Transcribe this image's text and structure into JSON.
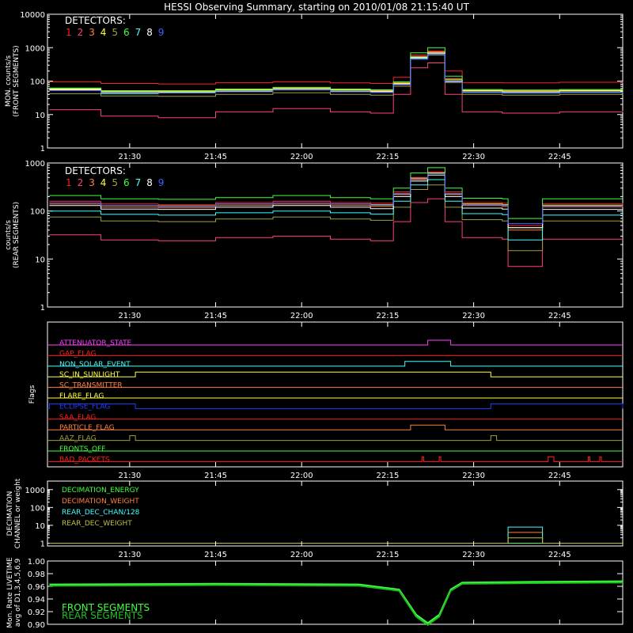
{
  "title": "HESSI Observing Summary, starting on 2010/01/08 21:15:40 UT",
  "x_axis": {
    "range": [
      "21:15:40",
      "22:56:00"
    ],
    "tick_labels": [
      "21:30",
      "21:45",
      "22:00",
      "22:15",
      "22:30",
      "22:45"
    ],
    "tick_values": [
      "21:30",
      "21:45",
      "22:00",
      "22:15",
      "22:30",
      "22:45"
    ]
  },
  "colors": {
    "axis": "#ffffff",
    "det1": "#ff2020",
    "det2": "#ff4080",
    "det3": "#ff8040",
    "det4": "#ffff40",
    "det5": "#a0a040",
    "det6": "#40ff40",
    "det7": "#40ffff",
    "det8": "#ffffff",
    "det9": "#4060ff"
  },
  "chart_data": [
    {
      "type": "line",
      "panel": "front",
      "ylabel": "MON. counts/s\n(FRONT SEGMENTS)",
      "yscale": "log",
      "ylim": [
        1,
        10000
      ],
      "y_tick_labels": [
        "1",
        "10",
        "100",
        "1000",
        "10000"
      ],
      "legend_title": "DETECTORS:",
      "legend_labels": [
        "1",
        "2",
        "3",
        "4",
        "5",
        "6",
        "7",
        "8",
        "9"
      ],
      "x": [
        "21:16",
        "21:25",
        "21:35",
        "21:45",
        "21:55",
        "22:05",
        "22:12",
        "22:16",
        "22:19",
        "22:22",
        "22:25",
        "22:28",
        "22:35",
        "22:45",
        "22:56"
      ],
      "series": [
        {
          "name": "1",
          "color_key": "det1",
          "values": [
            95,
            85,
            82,
            90,
            95,
            88,
            85,
            130,
            600,
            800,
            200,
            90,
            88,
            92,
            88
          ]
        },
        {
          "name": "2",
          "color_key": "det2",
          "values": [
            14,
            9,
            8,
            12,
            15,
            12,
            11,
            40,
            250,
            350,
            40,
            12,
            11,
            12,
            13
          ]
        },
        {
          "name": "3",
          "color_key": "det3",
          "values": [
            60,
            50,
            50,
            55,
            62,
            55,
            52,
            90,
            550,
            750,
            120,
            55,
            52,
            54,
            52
          ]
        },
        {
          "name": "4",
          "color_key": "det4",
          "values": [
            58,
            48,
            48,
            54,
            60,
            54,
            50,
            85,
            520,
            700,
            110,
            52,
            50,
            52,
            50
          ]
        },
        {
          "name": "5",
          "color_key": "det5",
          "values": [
            42,
            36,
            35,
            40,
            45,
            40,
            38,
            70,
            450,
            600,
            90,
            40,
            38,
            40,
            39
          ]
        },
        {
          "name": "6",
          "color_key": "det6",
          "values": [
            62,
            52,
            52,
            58,
            65,
            58,
            55,
            95,
            700,
            1000,
            140,
            56,
            54,
            56,
            54
          ]
        },
        {
          "name": "7",
          "color_key": "det7",
          "values": [
            55,
            42,
            45,
            50,
            55,
            48,
            46,
            80,
            500,
            650,
            100,
            46,
            44,
            46,
            45
          ]
        },
        {
          "name": "8",
          "color_key": "det8",
          "values": [
            55,
            45,
            45,
            50,
            56,
            50,
            48,
            80,
            480,
            680,
            100,
            48,
            46,
            48,
            47
          ]
        },
        {
          "name": "9",
          "color_key": "det9",
          "values": [
            52,
            44,
            44,
            48,
            54,
            48,
            46,
            78,
            460,
            640,
            95,
            46,
            44,
            46,
            45
          ]
        }
      ]
    },
    {
      "type": "line",
      "panel": "rear",
      "ylabel": "counts/s\n(REAR SEGMENTS)",
      "yscale": "log",
      "ylim": [
        1,
        1000
      ],
      "y_tick_labels": [
        "1",
        "10",
        "100",
        "1000"
      ],
      "legend_title": "DETECTORS:",
      "legend_labels": [
        "1",
        "2",
        "3",
        "4",
        "5",
        "6",
        "7",
        "8",
        "9"
      ],
      "x": [
        "21:16",
        "21:25",
        "21:35",
        "21:45",
        "21:55",
        "22:05",
        "22:12",
        "22:16",
        "22:19",
        "22:22",
        "22:25",
        "22:28",
        "22:35",
        "22:36",
        "22:41",
        "22:42",
        "22:56"
      ],
      "series": [
        {
          "name": "1",
          "color_key": "det1",
          "values": [
            160,
            140,
            135,
            150,
            160,
            150,
            145,
            250,
            500,
            650,
            250,
            150,
            145,
            50,
            50,
            140,
            145
          ]
        },
        {
          "name": "2",
          "color_key": "det2",
          "values": [
            32,
            25,
            24,
            28,
            30,
            26,
            24,
            60,
            150,
            180,
            60,
            28,
            26,
            7,
            7,
            26,
            26
          ]
        },
        {
          "name": "3",
          "color_key": "det3",
          "values": [
            140,
            120,
            118,
            130,
            140,
            130,
            125,
            220,
            450,
            600,
            220,
            130,
            125,
            40,
            40,
            122,
            125
          ]
        },
        {
          "name": "4",
          "color_key": "det4",
          "values": [
            150,
            130,
            128,
            140,
            150,
            140,
            135,
            230,
            480,
            620,
            230,
            140,
            135,
            45,
            45,
            132,
            135
          ]
        },
        {
          "name": "5",
          "color_key": "det5",
          "values": [
            75,
            62,
            60,
            68,
            75,
            68,
            64,
            120,
            280,
            350,
            120,
            66,
            62,
            15,
            15,
            62,
            62
          ]
        },
        {
          "name": "6",
          "color_key": "det6",
          "values": [
            210,
            180,
            175,
            190,
            210,
            190,
            180,
            300,
            620,
            800,
            300,
            185,
            180,
            70,
            70,
            180,
            180
          ]
        },
        {
          "name": "7",
          "color_key": "det7",
          "values": [
            100,
            85,
            82,
            92,
            100,
            92,
            86,
            160,
            350,
            450,
            160,
            88,
            84,
            25,
            25,
            82,
            84
          ]
        },
        {
          "name": "8",
          "color_key": "det8",
          "values": [
            130,
            110,
            108,
            120,
            130,
            120,
            112,
            200,
            420,
            560,
            200,
            115,
            110,
            45,
            45,
            108,
            110
          ]
        },
        {
          "name": "9",
          "color_key": "det9",
          "values": [
            150,
            130,
            125,
            140,
            150,
            140,
            132,
            230,
            470,
            600,
            230,
            135,
            130,
            55,
            55,
            128,
            132
          ]
        }
      ]
    },
    {
      "type": "line",
      "panel": "flags",
      "ylabel": "Flags",
      "flags": [
        {
          "name": "ATTENUATOR_STATE",
          "color": "#ff40ff",
          "on": [
            [
              "22:22",
              "22:26"
            ]
          ]
        },
        {
          "name": "GAP_FLAG",
          "color": "#ff2020",
          "on": []
        },
        {
          "name": "NON_SOLAR_EVENT",
          "color": "#40ffff",
          "on": [
            [
              "22:18",
              "22:26"
            ]
          ]
        },
        {
          "name": "SC_IN_SUNLIGHT",
          "color": "#ffff40",
          "on": [
            [
              "21:31",
              "22:33"
            ]
          ]
        },
        {
          "name": "SC_TRANSMITTER",
          "color": "#ff8040",
          "on": []
        },
        {
          "name": "FLARE_FLAG",
          "color": "#ffff40",
          "on": []
        },
        {
          "name": "ECLIPSE_FLAG",
          "color": "#2040ff",
          "on": [
            [
              "21:16",
              "21:31"
            ],
            [
              "22:33",
              "22:56"
            ]
          ]
        },
        {
          "name": "SAA_FLAG",
          "color": "#ff2020",
          "on": []
        },
        {
          "name": "PARTICLE_FLAG",
          "color": "#ff8040",
          "on": [
            [
              "22:19",
              "22:25"
            ]
          ]
        },
        {
          "name": "AAZ_FLAG",
          "color": "#a0a040",
          "on": [
            [
              "21:30",
              "21:31"
            ],
            [
              "22:33",
              "22:34"
            ]
          ]
        },
        {
          "name": "FRONTS_OFF",
          "color": "#40ff40",
          "on": []
        },
        {
          "name": "BAD_PACKETS",
          "color": "#ff2020",
          "on": [
            [
              "22:21",
              "22:21"
            ],
            [
              "22:24",
              "22:24"
            ],
            [
              "22:43",
              "22:44"
            ],
            [
              "22:50",
              "22:50"
            ],
            [
              "22:52",
              "22:52"
            ]
          ]
        }
      ]
    },
    {
      "type": "line",
      "panel": "decimation",
      "ylabel": "DECIMATION\nCHANNEL or weight",
      "yscale": "log",
      "ylim": [
        0.7,
        3000
      ],
      "y_tick_labels": [
        "1",
        "10",
        "100",
        "1000"
      ],
      "x": [
        "21:16",
        "22:36",
        "22:36",
        "22:42",
        "22:42",
        "22:56"
      ],
      "series": [
        {
          "name": "DECIMATION_ENERGY",
          "color": "#40ff40",
          "values": [
            1,
            1,
            1,
            1,
            1,
            1
          ]
        },
        {
          "name": "DECIMATION_WEIGHT",
          "color": "#ff8040",
          "values": [
            1,
            1,
            4,
            4,
            1,
            1
          ]
        },
        {
          "name": "REAR_DEC_CHAN/128",
          "color": "#40ffff",
          "values": [
            1,
            1,
            8,
            8,
            1,
            1
          ]
        },
        {
          "name": "REAR_DEC_WEIGHT",
          "color": "#c0c040",
          "values": [
            1,
            1,
            2,
            2,
            1,
            1
          ]
        }
      ]
    },
    {
      "type": "line",
      "panel": "livetime",
      "ylabel": "Mon. Rate LIVETIME\navg of D1,3,4,5,6,9",
      "ylim": [
        0.9,
        1.0
      ],
      "y_tick_labels": [
        "0.90",
        "0.92",
        "0.94",
        "0.96",
        "0.98",
        "1.00"
      ],
      "x": [
        "21:16",
        "21:45",
        "22:10",
        "22:17",
        "22:20",
        "22:22",
        "22:24",
        "22:26",
        "22:28",
        "22:40",
        "22:56"
      ],
      "series": [
        {
          "name": "FRONT SEGMENTS",
          "color": "#40ff40",
          "values": [
            0.963,
            0.964,
            0.963,
            0.955,
            0.915,
            0.902,
            0.915,
            0.955,
            0.966,
            0.967,
            0.968
          ]
        },
        {
          "name": "REAR SEGMENTS",
          "color": "#20c020",
          "values": [
            0.961,
            0.962,
            0.961,
            0.953,
            0.912,
            0.899,
            0.912,
            0.953,
            0.964,
            0.965,
            0.966
          ]
        }
      ]
    }
  ]
}
